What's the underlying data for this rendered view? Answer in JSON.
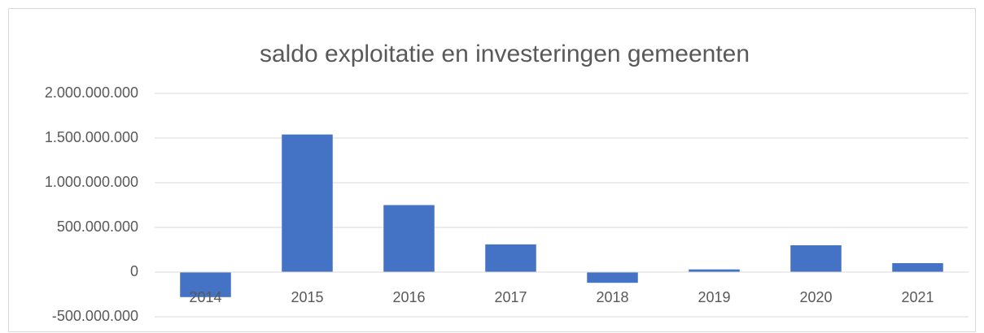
{
  "chart_data": {
    "type": "bar",
    "title": "saldo exploitatie en investeringen gemeenten",
    "categories": [
      "2014",
      "2015",
      "2016",
      "2017",
      "2018",
      "2019",
      "2020",
      "2021"
    ],
    "values": [
      -280000000,
      1540000000,
      750000000,
      310000000,
      -120000000,
      30000000,
      300000000,
      100000000
    ],
    "color": "#4472c4",
    "ylim": [
      -500000000,
      2000000000
    ],
    "yticks": [
      {
        "value": -500000000,
        "label": "-500.000.000"
      },
      0,
      {
        "value": 500000000,
        "label": "500.000.000"
      },
      {
        "value": 1000000000,
        "label": "1.000.000.000"
      },
      {
        "value": 1500000000,
        "label": "1.500.000.000"
      },
      {
        "value": 2000000000,
        "label": "2.000.000.000"
      }
    ],
    "grid": true
  }
}
